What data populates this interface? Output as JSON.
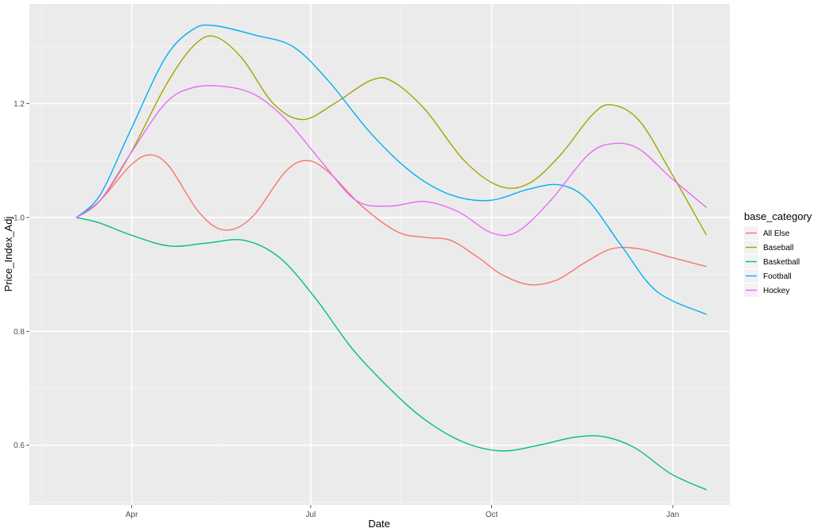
{
  "chart_data": {
    "type": "line",
    "xlabel": "Date",
    "ylabel": "Price_Index_Adj",
    "x_axis_type": "date",
    "xlim": [
      "2023-02-08",
      "2024-01-30"
    ],
    "ylim": [
      0.495,
      1.375
    ],
    "x_ticks": [
      {
        "date": "2023-04-01",
        "label": "Apr"
      },
      {
        "date": "2023-07-01",
        "label": "Jul"
      },
      {
        "date": "2023-10-01",
        "label": "Oct"
      },
      {
        "date": "2024-01-01",
        "label": "Jan"
      }
    ],
    "y_ticks": [
      {
        "value": 0.6,
        "label": "0.6"
      },
      {
        "value": 0.8,
        "label": "0.8"
      },
      {
        "value": 1.0,
        "label": "1.0"
      },
      {
        "value": 1.2,
        "label": "1.2"
      }
    ],
    "grid": true,
    "legend": {
      "title": "base_category",
      "position": "right"
    },
    "series": [
      {
        "name": "All Else",
        "color": "#F8766D",
        "points": [
          [
            "2023-03-04",
            1.0
          ],
          [
            "2023-03-16",
            1.03
          ],
          [
            "2023-03-31",
            1.09
          ],
          [
            "2023-04-10",
            1.11
          ],
          [
            "2023-04-20",
            1.09
          ],
          [
            "2023-05-05",
            1.01
          ],
          [
            "2023-05-18",
            0.978
          ],
          [
            "2023-06-01",
            1.0
          ],
          [
            "2023-06-18",
            1.08
          ],
          [
            "2023-06-29",
            1.1
          ],
          [
            "2023-07-10",
            1.08
          ],
          [
            "2023-07-27",
            1.02
          ],
          [
            "2023-08-14",
            0.975
          ],
          [
            "2023-08-28",
            0.965
          ],
          [
            "2023-09-10",
            0.96
          ],
          [
            "2023-09-24",
            0.93
          ],
          [
            "2023-10-06",
            0.9
          ],
          [
            "2023-10-20",
            0.882
          ],
          [
            "2023-11-03",
            0.89
          ],
          [
            "2023-11-17",
            0.92
          ],
          [
            "2023-12-01",
            0.945
          ],
          [
            "2023-12-15",
            0.945
          ],
          [
            "2023-12-29",
            0.932
          ],
          [
            "2024-01-18",
            0.914
          ]
        ]
      },
      {
        "name": "Baseball",
        "color": "#A3A500",
        "points": [
          [
            "2023-03-04",
            1.0
          ],
          [
            "2023-03-16",
            1.03
          ],
          [
            "2023-03-31",
            1.11
          ],
          [
            "2023-04-18",
            1.23
          ],
          [
            "2023-05-02",
            1.3
          ],
          [
            "2023-05-13",
            1.318
          ],
          [
            "2023-05-27",
            1.28
          ],
          [
            "2023-06-12",
            1.2
          ],
          [
            "2023-06-27",
            1.172
          ],
          [
            "2023-07-13",
            1.2
          ],
          [
            "2023-07-31",
            1.24
          ],
          [
            "2023-08-11",
            1.24
          ],
          [
            "2023-08-28",
            1.19
          ],
          [
            "2023-09-17",
            1.1
          ],
          [
            "2023-10-05",
            1.055
          ],
          [
            "2023-10-20",
            1.06
          ],
          [
            "2023-11-05",
            1.11
          ],
          [
            "2023-11-21",
            1.18
          ],
          [
            "2023-12-01",
            1.198
          ],
          [
            "2023-12-15",
            1.17
          ],
          [
            "2023-12-31",
            1.08
          ],
          [
            "2024-01-18",
            0.97
          ]
        ]
      },
      {
        "name": "Basketball",
        "color": "#00BF7D",
        "points": [
          [
            "2023-03-04",
            1.0
          ],
          [
            "2023-03-16",
            0.99
          ],
          [
            "2023-03-31",
            0.97
          ],
          [
            "2023-04-20",
            0.95
          ],
          [
            "2023-05-09",
            0.955
          ],
          [
            "2023-05-28",
            0.96
          ],
          [
            "2023-06-15",
            0.93
          ],
          [
            "2023-07-03",
            0.86
          ],
          [
            "2023-07-22",
            0.77
          ],
          [
            "2023-08-10",
            0.7
          ],
          [
            "2023-08-28",
            0.645
          ],
          [
            "2023-09-17",
            0.605
          ],
          [
            "2023-10-06",
            0.59
          ],
          [
            "2023-10-25",
            0.6
          ],
          [
            "2023-11-12",
            0.614
          ],
          [
            "2023-11-27",
            0.615
          ],
          [
            "2023-12-13",
            0.595
          ],
          [
            "2023-12-31",
            0.55
          ],
          [
            "2024-01-18",
            0.522
          ]
        ]
      },
      {
        "name": "Football",
        "color": "#00B0F6",
        "points": [
          [
            "2023-03-04",
            1.0
          ],
          [
            "2023-03-16",
            1.04
          ],
          [
            "2023-03-31",
            1.15
          ],
          [
            "2023-04-18",
            1.28
          ],
          [
            "2023-05-02",
            1.33
          ],
          [
            "2023-05-13",
            1.337
          ],
          [
            "2023-06-03",
            1.32
          ],
          [
            "2023-06-22",
            1.3
          ],
          [
            "2023-07-10",
            1.24
          ],
          [
            "2023-07-31",
            1.15
          ],
          [
            "2023-08-21",
            1.08
          ],
          [
            "2023-09-10",
            1.04
          ],
          [
            "2023-09-30",
            1.03
          ],
          [
            "2023-10-20",
            1.05
          ],
          [
            "2023-11-05",
            1.057
          ],
          [
            "2023-11-19",
            1.03
          ],
          [
            "2023-12-06",
            0.95
          ],
          [
            "2023-12-24",
            0.87
          ],
          [
            "2024-01-18",
            0.83
          ]
        ]
      },
      {
        "name": "Hockey",
        "color": "#E76BF3",
        "points": [
          [
            "2023-03-04",
            1.0
          ],
          [
            "2023-03-16",
            1.03
          ],
          [
            "2023-03-31",
            1.11
          ],
          [
            "2023-04-18",
            1.2
          ],
          [
            "2023-05-02",
            1.228
          ],
          [
            "2023-05-18",
            1.23
          ],
          [
            "2023-06-03",
            1.215
          ],
          [
            "2023-06-19",
            1.17
          ],
          [
            "2023-07-06",
            1.1
          ],
          [
            "2023-07-24",
            1.03
          ],
          [
            "2023-08-10",
            1.02
          ],
          [
            "2023-08-28",
            1.028
          ],
          [
            "2023-09-14",
            1.01
          ],
          [
            "2023-10-01",
            0.973
          ],
          [
            "2023-10-14",
            0.975
          ],
          [
            "2023-10-31",
            1.03
          ],
          [
            "2023-11-19",
            1.11
          ],
          [
            "2023-12-02",
            1.13
          ],
          [
            "2023-12-15",
            1.12
          ],
          [
            "2023-12-31",
            1.07
          ],
          [
            "2024-01-18",
            1.018
          ]
        ]
      }
    ]
  }
}
